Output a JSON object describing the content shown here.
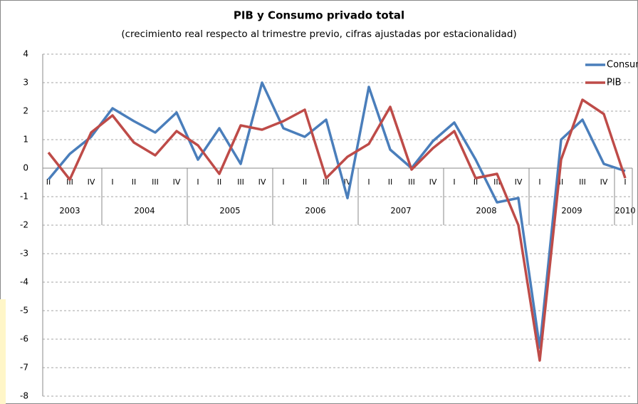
{
  "chart_data": {
    "type": "line",
    "title": "PIB y Consumo privado total",
    "subtitle": "(crecimiento real  respecto al trimestre previo, cifras ajustadas por estacionalidad)",
    "categories": [
      "II",
      "III",
      "IV",
      "I",
      "II",
      "III",
      "IV",
      "I",
      "II",
      "III",
      "IV",
      "I",
      "II",
      "III",
      "IV",
      "I",
      "II",
      "III",
      "IV",
      "I",
      "II",
      "III",
      "IV",
      "I",
      "II",
      "III",
      "IV",
      "I"
    ],
    "years": [
      "2003",
      "2004",
      "2005",
      "2006",
      "2007",
      "2008",
      "2009",
      "2010"
    ],
    "series": [
      {
        "name": "Consumo",
        "color": "#4a7ebb",
        "values": [
          -0.4,
          0.5,
          1.1,
          2.1,
          1.65,
          1.25,
          1.95,
          0.3,
          1.4,
          0.15,
          3.0,
          1.4,
          1.1,
          1.7,
          -1.05,
          2.85,
          0.65,
          0.0,
          0.95,
          1.6,
          0.3,
          -1.2,
          -1.05,
          -6.3,
          1.0,
          1.7,
          0.15,
          -0.1
        ]
      },
      {
        "name": "PIB",
        "color": "#be4b48",
        "values": [
          0.55,
          -0.4,
          1.25,
          1.85,
          0.9,
          0.45,
          1.3,
          0.8,
          -0.2,
          1.5,
          1.35,
          1.65,
          2.05,
          -0.35,
          0.4,
          0.85,
          2.15,
          -0.05,
          0.7,
          1.3,
          -0.35,
          -0.2,
          -2.0,
          -6.75,
          0.3,
          2.4,
          1.9,
          -0.35
        ]
      }
    ],
    "ylim": [
      -8,
      4
    ],
    "yticks": [
      4,
      3,
      2,
      1,
      0,
      -1,
      -2,
      -3,
      -4,
      -5,
      -6,
      -7,
      -8
    ],
    "grid": true,
    "legend": "top-right"
  }
}
